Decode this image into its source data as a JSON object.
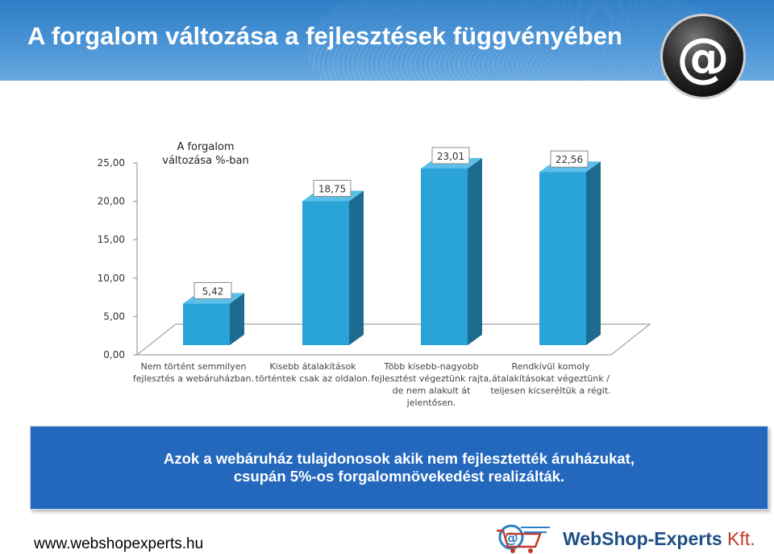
{
  "header": {
    "title": "A forgalom változása a fejlesztések függvényében"
  },
  "chart_data": {
    "type": "bar",
    "title": "A forgalom\nváltozása %-ban",
    "categories": [
      [
        "Nem történt semmilyen",
        "fejlesztés a webáruházban."
      ],
      [
        "Kisebb átalakítások",
        "történtek csak az oldalon."
      ],
      [
        "Több kisebb-nagyobb",
        "fejlesztést végeztünk rajta,",
        "de nem alakult át",
        "jelentősen."
      ],
      [
        "Rendkívül komoly",
        "átalakításokat végeztünk /",
        "teljesen kicseréltük a régit."
      ]
    ],
    "values": [
      5.42,
      18.75,
      23.01,
      22.56
    ],
    "value_labels": [
      "5,42",
      "18,75",
      "23,01",
      "22,56"
    ],
    "y_ticks": [
      "0,00",
      "5,00",
      "10,00",
      "15,00",
      "20,00",
      "25,00"
    ],
    "ylim": [
      0,
      25
    ],
    "grid": false,
    "bar_color": "#2aa3d9"
  },
  "banner": {
    "line1": "Azok a webáruház tulajdonosok akik nem fejlesztették áruházukat,",
    "line2": "csupán 5%-os forgalomnövekedést realizálták."
  },
  "footer": {
    "url": "www.webshopexperts.hu",
    "brand": "WebShop-Experts",
    "brand_suffix": "Kft."
  }
}
